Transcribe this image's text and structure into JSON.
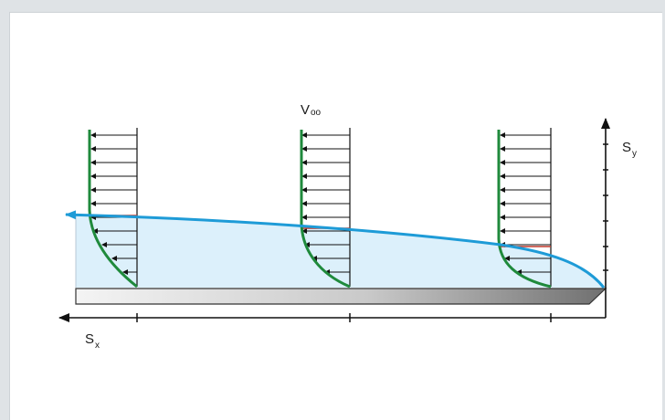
{
  "labels": {
    "freestream": "V",
    "freestream_sub": "oo",
    "axis_y": "S",
    "axis_y_sub": "y",
    "axis_x": "S",
    "axis_x_sub": "x"
  },
  "colors": {
    "boundary_layer_curve": "#1e9bd7",
    "boundary_layer_fill": "#dcf0fb",
    "velocity_profile": "#1f8a3c",
    "thickness_mark": "#c0392b",
    "arrows": "#111111",
    "plate_light": "#f2f2f2",
    "plate_dark": "#7a7a7a"
  }
}
